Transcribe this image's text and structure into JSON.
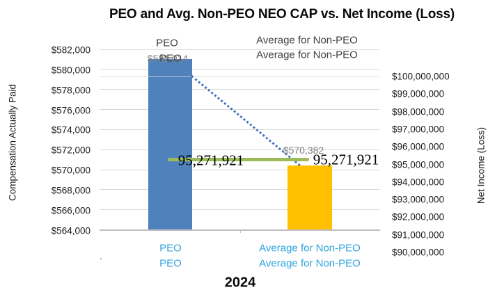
{
  "chart_data": {
    "type": "bar",
    "title": "PEO and Avg. Non-PEO NEO CAP vs. Net Income (Loss)",
    "categories": [
      "PEO",
      "Average for Non-PEO"
    ],
    "x_group_label": "2024",
    "series": [
      {
        "name": "Compensation Actually Paid",
        "type": "bar",
        "axis": "left",
        "values": [
          581014,
          570382
        ],
        "labels": [
          "$581,014",
          "$570,382"
        ],
        "colors": [
          "#4f81bd",
          "#ffc000"
        ]
      },
      {
        "name": "Net Income (Loss)",
        "type": "line",
        "axis": "right",
        "values": [
          95271921,
          95271921
        ],
        "labels": [
          "95,271,921",
          "95,271,921"
        ],
        "color": "#9bbb59"
      }
    ],
    "connector_line": {
      "style": "dotted",
      "color": "#4472c4",
      "from_category": "PEO",
      "to_category": "Average for Non-PEO"
    },
    "left_axis": {
      "title": "Compensation Actually Paid",
      "min": 564000,
      "max": 582000,
      "step": 2000,
      "tick_labels": [
        "$582,000",
        "$580,000",
        "$578,000",
        "$576,000",
        "$574,000",
        "$572,000",
        "$570,000",
        "$568,000",
        "$566,000",
        "$564,000"
      ]
    },
    "right_axis": {
      "title": "Net Income (Loss)",
      "min": 90000000,
      "max": 100000000,
      "step": 1000000,
      "tick_labels": [
        "$100,000,000",
        "$99,000,000",
        "$98,000,000",
        "$97,000,000",
        "$96,000,000",
        "$95,000,000",
        "$94,000,000",
        "$93,000,000",
        "$92,000,000",
        "$91,000,000",
        "$90,000,000"
      ]
    },
    "top_labels": {
      "peo_line1": "PEO",
      "peo_line2": "PEO",
      "nonpeo_line1": "Average for Non-PEO",
      "nonpeo_line2": "Average for Non-PEO"
    },
    "bottom_labels": {
      "peo_line1": "PEO",
      "peo_line2": "PEO",
      "nonpeo_line1": "Average for Non-PEO",
      "nonpeo_line2": "Average for Non-PEO"
    },
    "stray_dot": ".",
    "grid": true,
    "legend_position": "none",
    "colors": {
      "bar_peo": "#4f81bd",
      "bar_nonpeo": "#ffc000",
      "net_income_line": "#9bbb59",
      "connector": "#4472c4",
      "category_text": "#2ea3dc",
      "data_label_text": "#7f7f7f",
      "gridline": "#d9d9d9",
      "axis_line": "#bfbfbf"
    }
  }
}
